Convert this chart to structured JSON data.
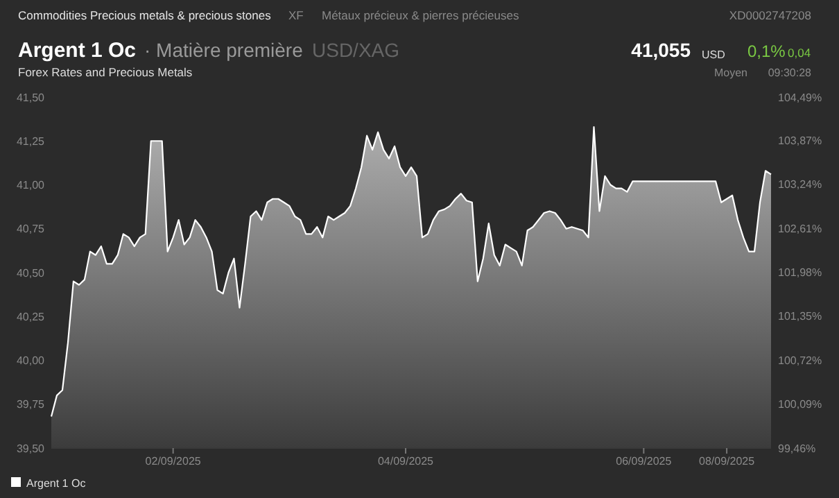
{
  "chart_data": {
    "type": "area",
    "title": "Argent 1 Oc",
    "subtitle": "Forex Rates and Precious Metals",
    "annotations": [
      "Commodities Precious metals & precious stones",
      "XF",
      "Métaux précieux & pierres précieuses",
      "XD0002747208",
      "· Matière première",
      "USD/XAG",
      "41,055",
      "USD",
      "0,1%",
      "0,04",
      "Moyen",
      "09:30:28"
    ],
    "categories": [
      null,
      null,
      null,
      null,
      null,
      null,
      null,
      null,
      null,
      null,
      null,
      null,
      null,
      null,
      null,
      null,
      null,
      null,
      null,
      null,
      null,
      null,
      "02/09/2025",
      null,
      null,
      null,
      null,
      null,
      null,
      null,
      null,
      null,
      null,
      null,
      null,
      null,
      null,
      null,
      null,
      null,
      null,
      null,
      null,
      null,
      null,
      null,
      null,
      null,
      null,
      null,
      null,
      null,
      null,
      null,
      null,
      null,
      null,
      null,
      null,
      null,
      null,
      null,
      null,
      null,
      "04/09/2025",
      null,
      null,
      null,
      null,
      null,
      null,
      null,
      null,
      null,
      null,
      null,
      null,
      null,
      null,
      null,
      null,
      null,
      null,
      null,
      null,
      null,
      null,
      null,
      null,
      null,
      null,
      null,
      null,
      null,
      null,
      null,
      null,
      null,
      null,
      null,
      null,
      null,
      null,
      null,
      null,
      null,
      null,
      "06/09/2025",
      null,
      null,
      null,
      null,
      null,
      null,
      null,
      null,
      null,
      null,
      null,
      null,
      null,
      null,
      "08/09/2025",
      null,
      null,
      null,
      null,
      null,
      null,
      null,
      null
    ],
    "series": [
      {
        "name": "Argent 1 Oc",
        "color": "#ffffff",
        "values": [
          39.68,
          39.8,
          39.83,
          40.1,
          40.45,
          40.43,
          40.46,
          40.62,
          40.6,
          40.65,
          40.55,
          40.55,
          40.6,
          40.72,
          40.7,
          40.65,
          40.7,
          40.72,
          41.25,
          41.25,
          41.25,
          40.62,
          40.7,
          40.8,
          40.66,
          40.7,
          40.8,
          40.76,
          40.7,
          40.62,
          40.4,
          40.38,
          40.5,
          40.58,
          40.3,
          40.55,
          40.82,
          40.85,
          40.8,
          40.9,
          40.92,
          40.92,
          40.9,
          40.88,
          40.82,
          40.8,
          40.72,
          40.72,
          40.76,
          40.7,
          40.82,
          40.8,
          40.82,
          40.84,
          40.88,
          40.98,
          41.1,
          41.28,
          41.2,
          41.3,
          41.2,
          41.15,
          41.22,
          41.1,
          41.05,
          41.1,
          41.05,
          40.7,
          40.72,
          40.8,
          40.85,
          40.86,
          40.88,
          40.92,
          40.95,
          40.91,
          40.9,
          40.45,
          40.58,
          40.78,
          40.6,
          40.54,
          40.66,
          40.64,
          40.62,
          40.54,
          40.74,
          40.76,
          40.8,
          40.84,
          40.85,
          40.84,
          40.8,
          40.75,
          40.76,
          40.75,
          40.74,
          40.7,
          41.33,
          40.85,
          41.05,
          41.0,
          40.98,
          40.98,
          40.96,
          41.02,
          41.02,
          41.02,
          41.02,
          41.02,
          41.02,
          41.02,
          41.02,
          41.02,
          41.02,
          41.02,
          41.02,
          41.02,
          41.02,
          41.02,
          41.02,
          40.9,
          40.92,
          40.94,
          40.8,
          40.7,
          40.62,
          40.62,
          40.9,
          41.08,
          41.06
        ]
      }
    ],
    "ylim": [
      39.5,
      41.5
    ],
    "yticks": [
      {
        "value": 39.5,
        "label": "39,50"
      },
      {
        "value": 39.75,
        "label": "39,75"
      },
      {
        "value": 40,
        "label": "40,00"
      },
      {
        "value": 40.25,
        "label": "40,25"
      },
      {
        "value": 40.5,
        "label": "40,50"
      },
      {
        "value": 40.75,
        "label": "40,75"
      },
      {
        "value": 41,
        "label": "41,00"
      },
      {
        "value": 41.25,
        "label": "41,25"
      },
      {
        "value": 41.5,
        "label": "41,50"
      }
    ],
    "y2lim": [
      99.46,
      104.49
    ],
    "y2ticks": [
      {
        "value": 99.46,
        "label": "99,46%"
      },
      {
        "value": 100.09,
        "label": "100,09%"
      },
      {
        "value": 100.72,
        "label": "100,72%"
      },
      {
        "value": 101.35,
        "label": "101,35%"
      },
      {
        "value": 101.98,
        "label": "101,98%"
      },
      {
        "value": 102.61,
        "label": "102,61%"
      },
      {
        "value": 103.24,
        "label": "103,24%"
      },
      {
        "value": 103.87,
        "label": "103,87%"
      },
      {
        "value": 104.49,
        "label": "104,49%"
      }
    ],
    "grid": false,
    "legend": "bottom left"
  }
}
